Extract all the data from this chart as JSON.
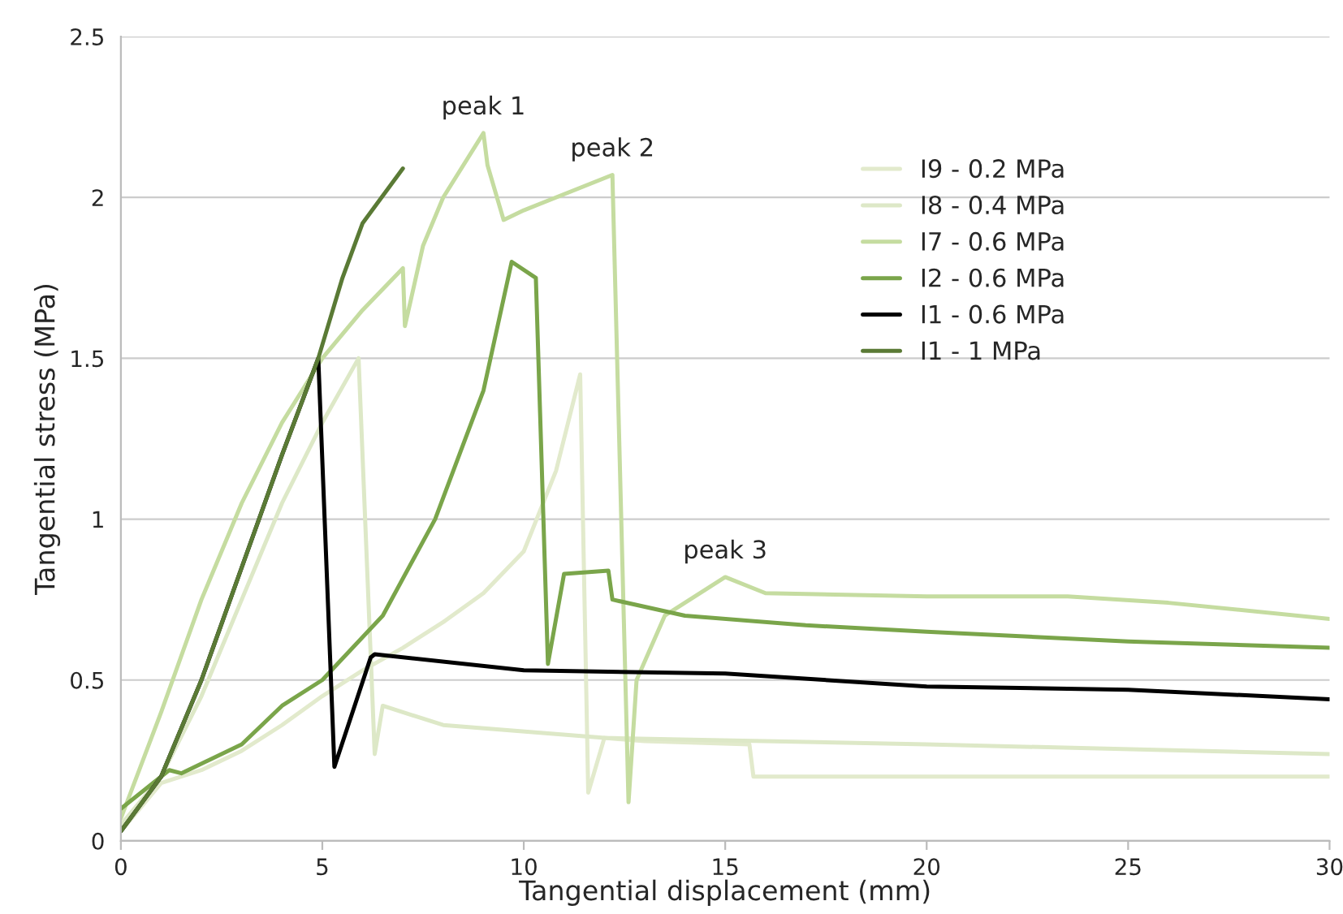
{
  "chart_data": {
    "type": "line",
    "xlabel": "Tangential displacement (mm)",
    "ylabel": "Tangential stress (MPa)",
    "xlim": [
      0,
      30
    ],
    "xticks": [
      0,
      5,
      10,
      15,
      20,
      25,
      30
    ],
    "ylim": [
      0,
      2.5
    ],
    "yticks": [
      0,
      0.5,
      1,
      1.5,
      2,
      2.5
    ],
    "grid": "y",
    "legend": "right",
    "marker": "none",
    "line_style": "solid",
    "annotations": [
      {
        "text": "peak 1",
        "x": 9,
        "y": 2.2
      },
      {
        "text": "peak 2",
        "x": 12.2,
        "y": 2.07
      },
      {
        "text": "peak 3",
        "x": 15,
        "y": 0.82
      }
    ],
    "series": [
      {
        "name": "I9 - 0.2 MPa",
        "color": "#e2eacc",
        "x": [
          0,
          1,
          2,
          3,
          4,
          5,
          6,
          7,
          8,
          9,
          10,
          10.8,
          11.4,
          11.6,
          12,
          13,
          15.6,
          15.7,
          20,
          25,
          30
        ],
        "values": [
          0.03,
          0.18,
          0.22,
          0.28,
          0.36,
          0.45,
          0.53,
          0.6,
          0.68,
          0.77,
          0.9,
          1.15,
          1.45,
          0.15,
          0.32,
          0.31,
          0.3,
          0.2,
          0.2,
          0.2,
          0.2
        ]
      },
      {
        "name": "I8 - 0.4 MPa",
        "color": "#dde8c7",
        "x": [
          0,
          1,
          2,
          3,
          4,
          5,
          5.9,
          6.3,
          6.5,
          8,
          12,
          20,
          30
        ],
        "values": [
          0.05,
          0.2,
          0.45,
          0.75,
          1.05,
          1.3,
          1.5,
          0.27,
          0.42,
          0.36,
          0.32,
          0.3,
          0.27
        ]
      },
      {
        "name": "I7 - 0.6 MPa",
        "color": "#c5dca0",
        "x": [
          0,
          1,
          2,
          3,
          4,
          5,
          6,
          7,
          7.05,
          7.5,
          8,
          9,
          9.1,
          9.5,
          10,
          12.2,
          12.6,
          12.8,
          13.5,
          15,
          16,
          20,
          23.5,
          26,
          30
        ],
        "values": [
          0.07,
          0.4,
          0.75,
          1.05,
          1.3,
          1.5,
          1.65,
          1.78,
          1.6,
          1.85,
          2.0,
          2.2,
          2.1,
          1.93,
          1.96,
          2.07,
          0.12,
          0.5,
          0.7,
          0.82,
          0.77,
          0.76,
          0.76,
          0.74,
          0.69
        ]
      },
      {
        "name": "I2 - 0.6 MPa",
        "color": "#7aa54a",
        "x": [
          0,
          1.2,
          1.5,
          3,
          4,
          5,
          6.5,
          7.8,
          9,
          9.7,
          10.3,
          10.6,
          11,
          12.1,
          12.2,
          14,
          17,
          20,
          25,
          30
        ],
        "values": [
          0.1,
          0.22,
          0.21,
          0.3,
          0.42,
          0.5,
          0.7,
          1.0,
          1.4,
          1.8,
          1.75,
          0.55,
          0.83,
          0.84,
          0.75,
          0.7,
          0.67,
          0.65,
          0.62,
          0.6
        ]
      },
      {
        "name": "I1 - 0.6 MPa",
        "color": "#000000",
        "x": [
          0,
          1,
          2,
          3,
          4,
          4.9,
          5.3,
          6.2,
          6.3,
          10,
          15,
          20,
          25,
          30
        ],
        "values": [
          0.03,
          0.2,
          0.5,
          0.85,
          1.2,
          1.5,
          0.23,
          0.57,
          0.58,
          0.53,
          0.52,
          0.48,
          0.47,
          0.44
        ]
      },
      {
        "name": "I1 - 1 MPa",
        "color": "#5a7a35",
        "x": [
          0,
          1,
          2,
          3,
          4,
          4.9,
          5.5,
          6,
          7
        ],
        "values": [
          0.03,
          0.2,
          0.5,
          0.85,
          1.2,
          1.5,
          1.75,
          1.92,
          2.09
        ]
      }
    ]
  }
}
